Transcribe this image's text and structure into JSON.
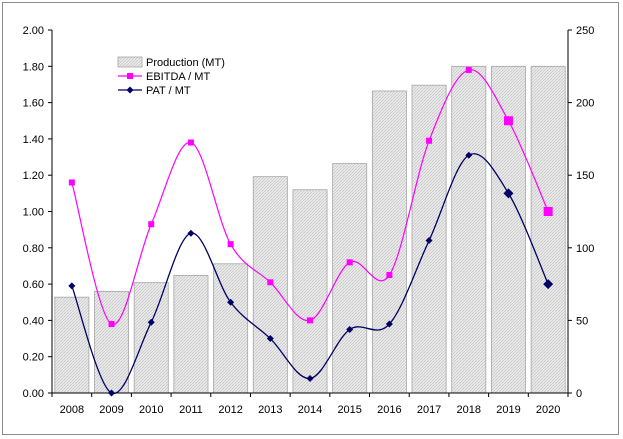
{
  "chart_data": {
    "type": "bar+line",
    "categories": [
      "2008",
      "2009",
      "2010",
      "2011",
      "2012",
      "2013",
      "2014",
      "2015",
      "2016",
      "2017",
      "2018",
      "2019",
      "2020"
    ],
    "series": [
      {
        "name": "Production (MT)",
        "type": "bar",
        "axis": "right",
        "color": "#d9d9d9",
        "values": [
          66,
          70,
          76,
          81,
          89,
          149,
          140,
          158,
          208,
          212,
          225,
          225,
          225
        ]
      },
      {
        "name": "EBITDA / MT",
        "type": "line",
        "axis": "left",
        "color": "#ff00ff",
        "values": [
          1.16,
          0.38,
          0.93,
          1.38,
          0.82,
          0.61,
          0.4,
          0.72,
          0.65,
          1.39,
          1.78,
          1.5,
          1.0
        ]
      },
      {
        "name": "PAT / MT",
        "type": "line",
        "axis": "left",
        "color": "#000066",
        "values": [
          0.59,
          0.0,
          0.39,
          0.88,
          0.5,
          0.3,
          0.08,
          0.35,
          0.38,
          0.84,
          1.31,
          1.1,
          0.6
        ]
      }
    ],
    "y_left": {
      "min": 0,
      "max": 2.0,
      "ticks": [
        "0.00",
        "0.20",
        "0.40",
        "0.60",
        "0.80",
        "1.00",
        "1.20",
        "1.40",
        "1.60",
        "1.80",
        "2.00"
      ]
    },
    "y_right": {
      "min": 0,
      "max": 250,
      "ticks": [
        "0",
        "50",
        "100",
        "150",
        "200",
        "250"
      ]
    },
    "grid": false,
    "legend": "top-left"
  }
}
